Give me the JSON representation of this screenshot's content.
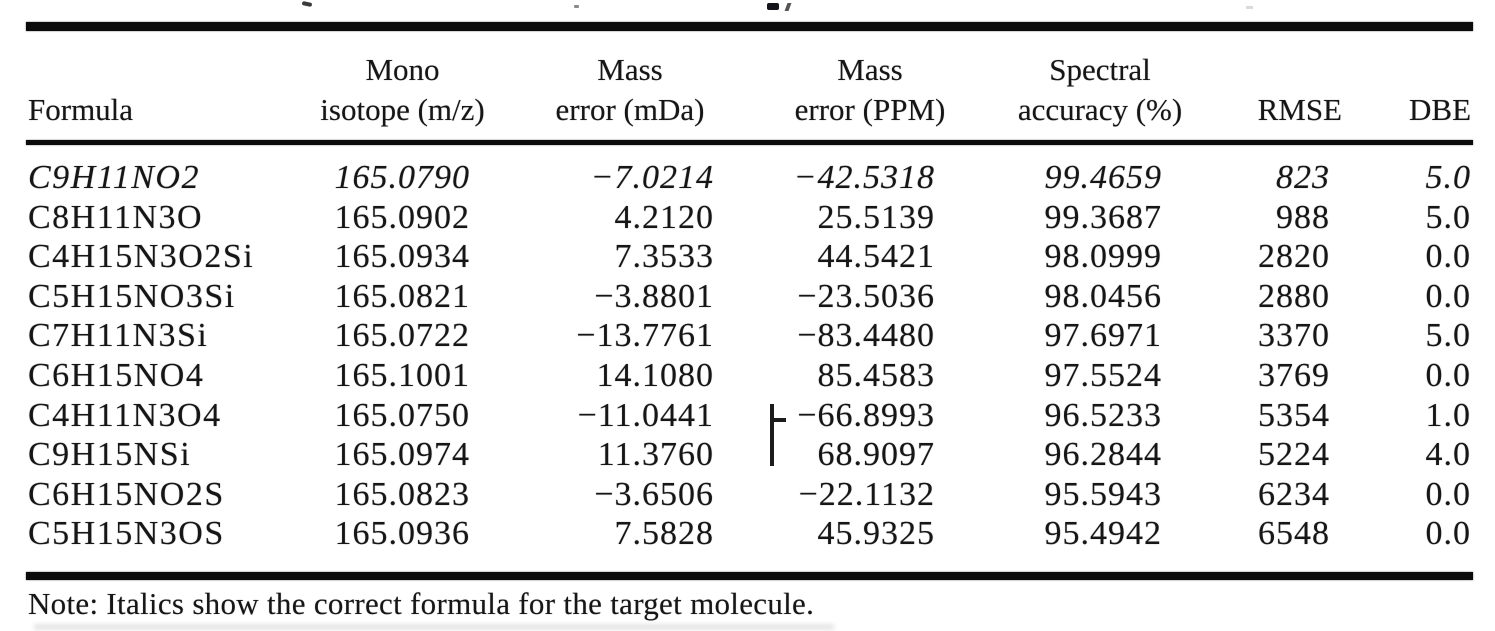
{
  "page": {
    "background": "#ffffff",
    "text_color": "#161616",
    "rule_color": "#0b0b0b"
  },
  "table": {
    "columns": [
      {
        "id": "formula",
        "line1": "",
        "line2": "Formula"
      },
      {
        "id": "mono",
        "line1": "Mono",
        "line2": "isotope (m/z)"
      },
      {
        "id": "mda",
        "line1": "Mass",
        "line2": "error (mDa)"
      },
      {
        "id": "ppm",
        "line1": "Mass",
        "line2": "error (PPM)"
      },
      {
        "id": "spectral",
        "line1": "Spectral",
        "line2": "accuracy (%)"
      },
      {
        "id": "rmse",
        "line1": "",
        "line2": "RMSE"
      },
      {
        "id": "dbe",
        "line1": "",
        "line2": "DBE"
      }
    ],
    "rows": [
      {
        "formula": "C9H11NO2",
        "mono": "165.0790",
        "mda": "−7.0214",
        "ppm": "−42.5318",
        "spectral": "99.4659",
        "rmse": "823",
        "dbe": "5.0",
        "italic": true
      },
      {
        "formula": "C8H11N3O",
        "mono": "165.0902",
        "mda": "4.2120",
        "ppm": "25.5139",
        "spectral": "99.3687",
        "rmse": "988",
        "dbe": "5.0",
        "italic": false
      },
      {
        "formula": "C4H15N3O2Si",
        "mono": "165.0934",
        "mda": "7.3533",
        "ppm": "44.5421",
        "spectral": "98.0999",
        "rmse": "2820",
        "dbe": "0.0",
        "italic": false
      },
      {
        "formula": "C5H15NO3Si",
        "mono": "165.0821",
        "mda": "−3.8801",
        "ppm": "−23.5036",
        "spectral": "98.0456",
        "rmse": "2880",
        "dbe": "0.0",
        "italic": false
      },
      {
        "formula": "C7H11N3Si",
        "mono": "165.0722",
        "mda": "−13.7761",
        "ppm": "−83.4480",
        "spectral": "97.6971",
        "rmse": "3370",
        "dbe": "5.0",
        "italic": false
      },
      {
        "formula": "C6H15NO4",
        "mono": "165.1001",
        "mda": "14.1080",
        "ppm": "85.4583",
        "spectral": "97.5524",
        "rmse": "3769",
        "dbe": "0.0",
        "italic": false
      },
      {
        "formula": "C4H11N3O4",
        "mono": "165.0750",
        "mda": "−11.0441",
        "ppm": "−66.8993",
        "spectral": "96.5233",
        "rmse": "5354",
        "dbe": "1.0",
        "italic": false
      },
      {
        "formula": "C9H15NSi",
        "mono": "165.0974",
        "mda": "11.3760",
        "ppm": "68.9097",
        "spectral": "96.2844",
        "rmse": "5224",
        "dbe": "4.0",
        "italic": false
      },
      {
        "formula": "C6H15NO2S",
        "mono": "165.0823",
        "mda": "−3.6506",
        "ppm": "−22.1132",
        "spectral": "95.5943",
        "rmse": "6234",
        "dbe": "0.0",
        "italic": false
      },
      {
        "formula": "C5H15N3OS",
        "mono": "165.0936",
        "mda": "7.5828",
        "ppm": "45.9325",
        "spectral": "95.4942",
        "rmse": "6548",
        "dbe": "0.0",
        "italic": false
      }
    ],
    "note": "Note: Italics show the correct formula for the target molecule."
  }
}
